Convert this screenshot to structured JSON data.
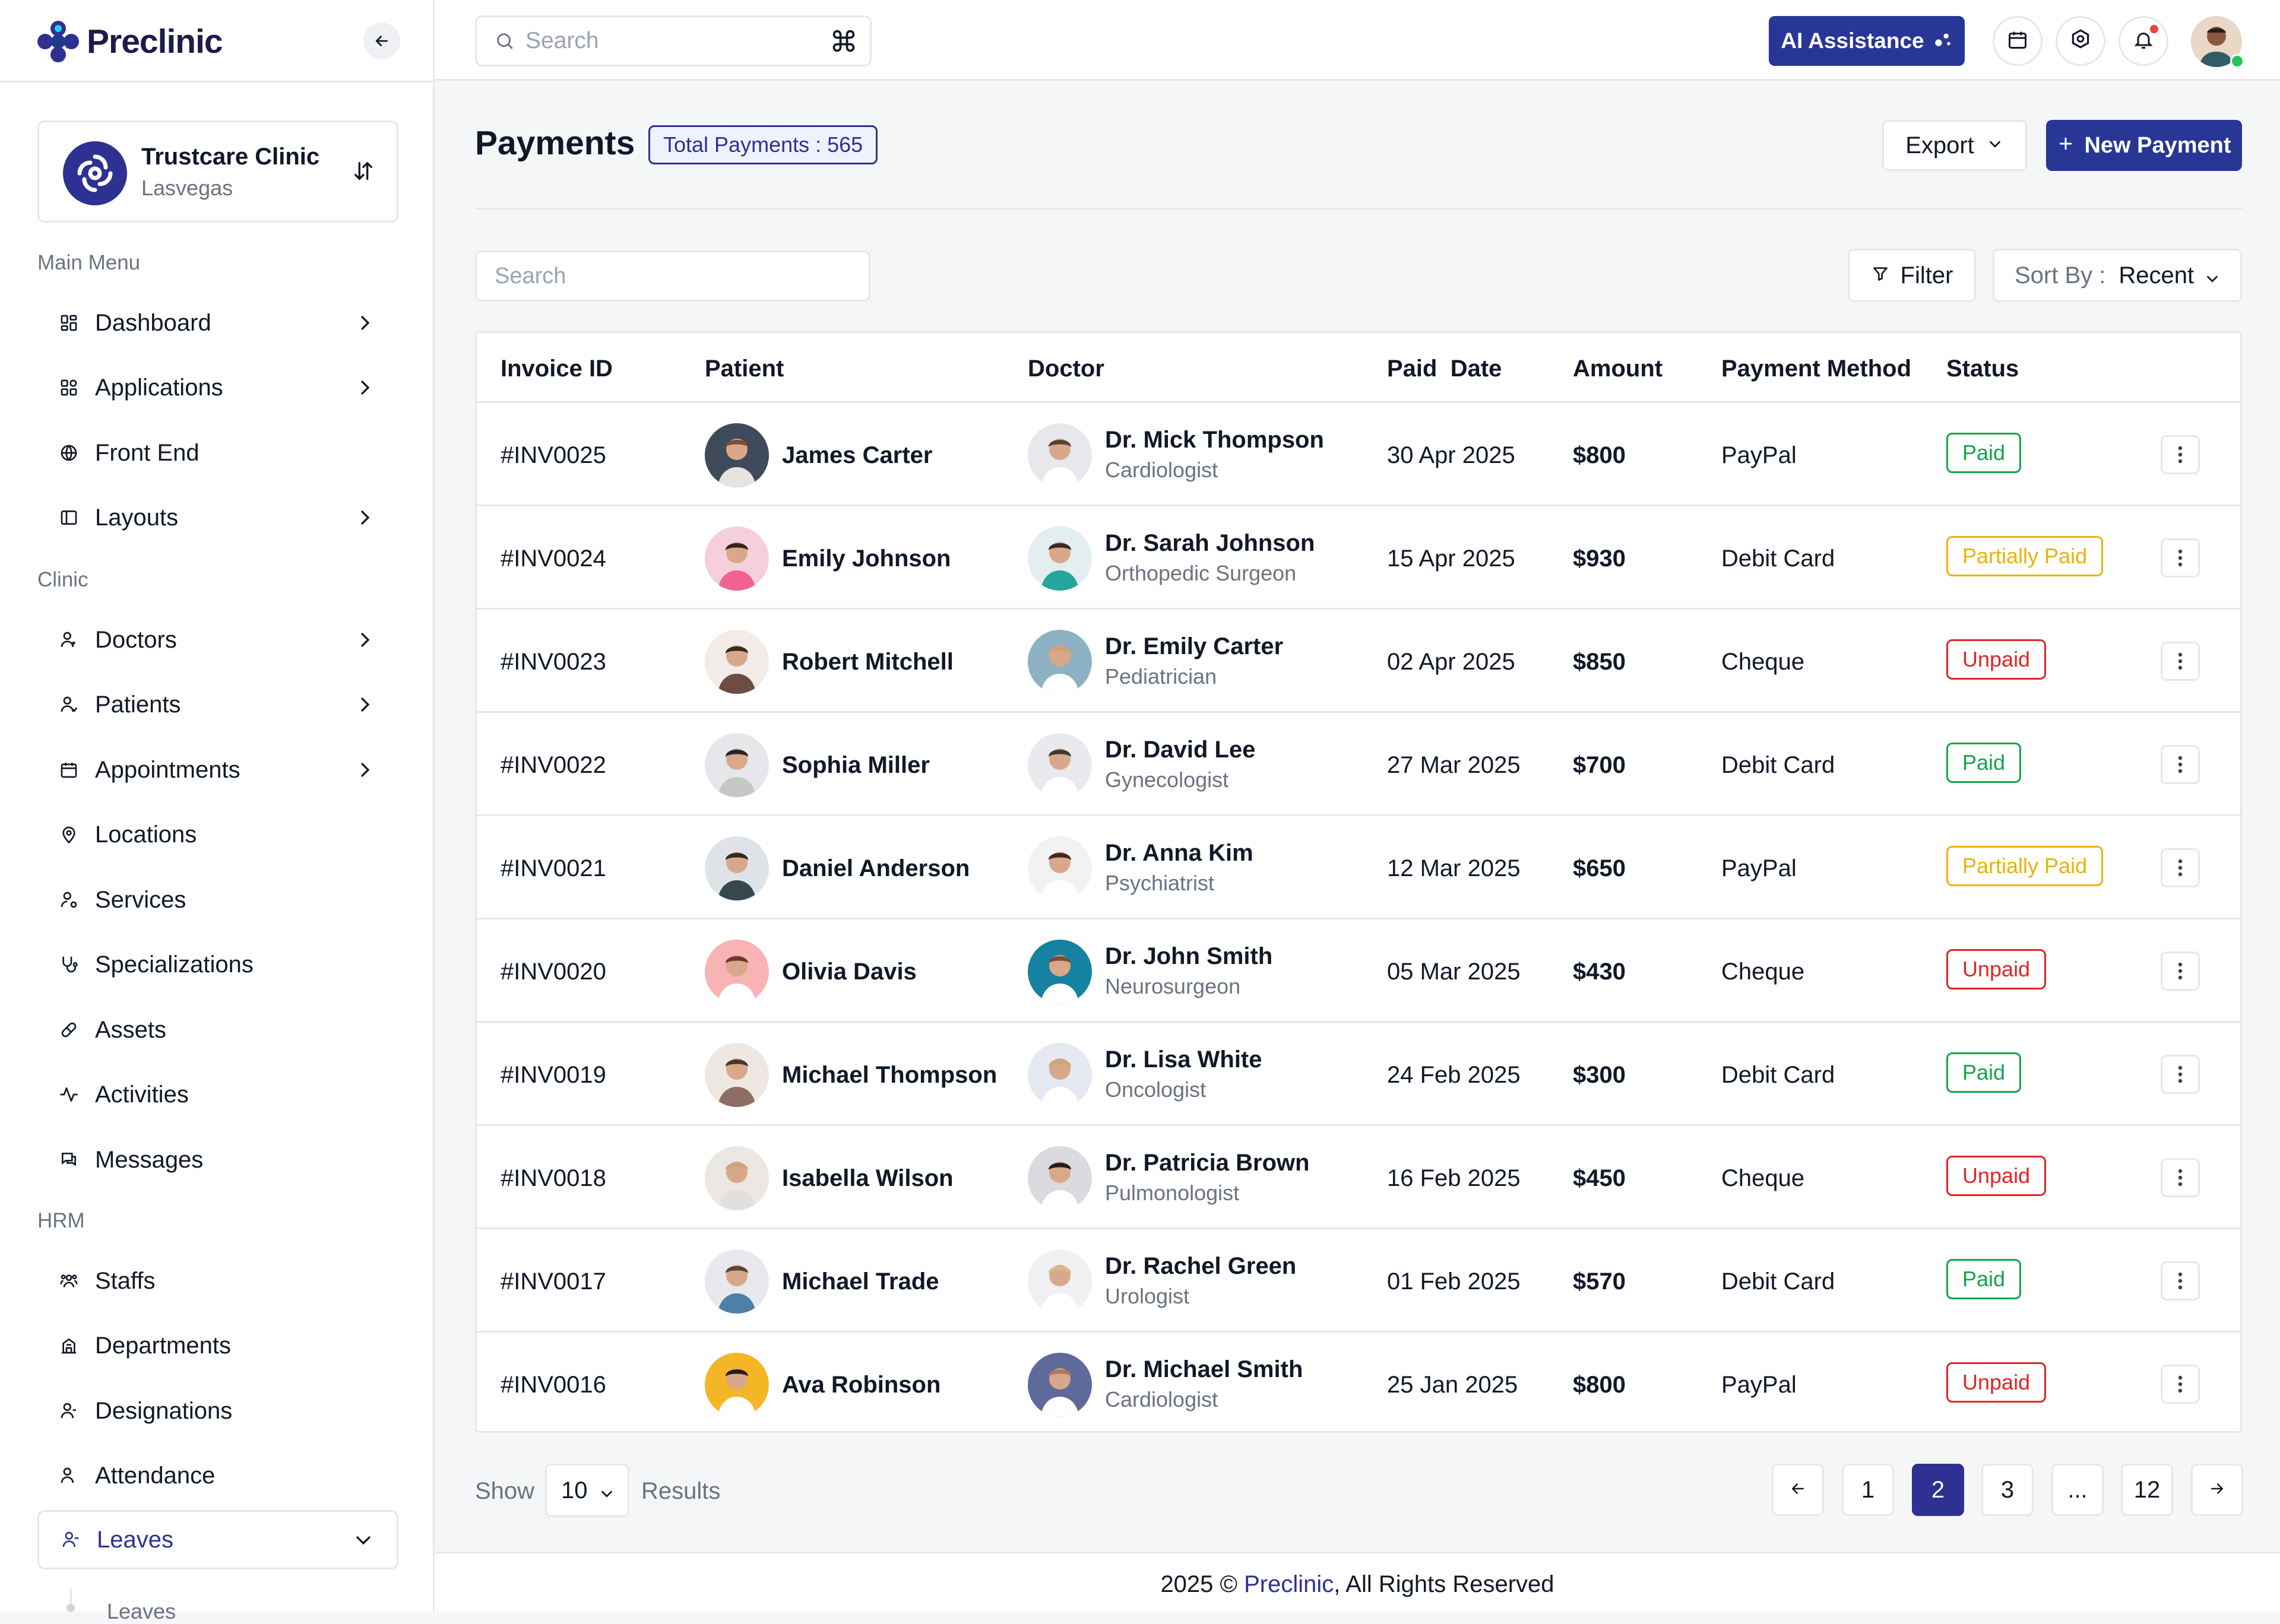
{
  "app": {
    "name": "Preclinic"
  },
  "clinic": {
    "name": "Trustcare Clinic",
    "location": "Lasvegas"
  },
  "sidebar": {
    "sections": [
      {
        "title": "Main Menu"
      },
      {
        "title": "Clinic"
      },
      {
        "title": "HRM"
      }
    ],
    "items": [
      {
        "label": "Dashboard"
      },
      {
        "label": "Applications"
      },
      {
        "label": "Front End"
      },
      {
        "label": "Layouts"
      },
      {
        "label": "Doctors"
      },
      {
        "label": "Patients"
      },
      {
        "label": "Appointments"
      },
      {
        "label": "Locations"
      },
      {
        "label": "Services"
      },
      {
        "label": "Specializations"
      },
      {
        "label": "Assets"
      },
      {
        "label": "Activities"
      },
      {
        "label": "Messages"
      },
      {
        "label": "Staffs"
      },
      {
        "label": "Departments"
      },
      {
        "label": "Designations"
      },
      {
        "label": "Attendance"
      },
      {
        "label": "Leaves"
      }
    ],
    "sub_item_partial": "Leaves"
  },
  "topbar": {
    "search_placeholder": "Search",
    "ai_label": "AI Assistance"
  },
  "page": {
    "title": "Payments",
    "total_badge": "Total Payments : 565",
    "export_label": "Export",
    "new_label": "New Payment",
    "search_placeholder": "Search",
    "filter_label": "Filter",
    "sort_label": "Sort By :",
    "sort_value": "Recent"
  },
  "table": {
    "headers": [
      "Invoice ID",
      "Patient",
      "Doctor",
      "Paid  Date",
      "Amount",
      "Payment Method",
      "Status"
    ],
    "rows": [
      {
        "invoice": "#INV0025",
        "patient": "James Carter",
        "doctor": "Dr. Mick Thompson",
        "specialty": "Cardiologist",
        "date": "30 Apr 2025",
        "amount": "$800",
        "method": "PayPal",
        "status": "Paid"
      },
      {
        "invoice": "#INV0024",
        "patient": "Emily Johnson",
        "doctor": "Dr. Sarah Johnson",
        "specialty": "Orthopedic Surgeon",
        "date": "15 Apr 2025",
        "amount": "$930",
        "method": "Debit Card",
        "status": "Partially Paid"
      },
      {
        "invoice": "#INV0023",
        "patient": "Robert Mitchell",
        "doctor": "Dr. Emily Carter",
        "specialty": "Pediatrician",
        "date": "02 Apr 2025",
        "amount": "$850",
        "method": "Cheque",
        "status": "Unpaid"
      },
      {
        "invoice": "#INV0022",
        "patient": "Sophia Miller",
        "doctor": "Dr. David Lee",
        "specialty": "Gynecologist",
        "date": "27 Mar 2025",
        "amount": "$700",
        "method": "Debit Card",
        "status": "Paid"
      },
      {
        "invoice": "#INV0021",
        "patient": "Daniel Anderson",
        "doctor": "Dr. Anna Kim",
        "specialty": "Psychiatrist",
        "date": "12 Mar 2025",
        "amount": "$650",
        "method": "PayPal",
        "status": "Partially Paid"
      },
      {
        "invoice": "#INV0020",
        "patient": "Olivia Davis",
        "doctor": "Dr. John Smith",
        "specialty": "Neurosurgeon",
        "date": "05 Mar 2025",
        "amount": "$430",
        "method": "Cheque",
        "status": "Unpaid"
      },
      {
        "invoice": "#INV0019",
        "patient": "Michael Thompson",
        "doctor": "Dr. Lisa White",
        "specialty": "Oncologist",
        "date": "24 Feb 2025",
        "amount": "$300",
        "method": "Debit Card",
        "status": "Paid"
      },
      {
        "invoice": "#INV0018",
        "patient": "Isabella Wilson",
        "doctor": "Dr. Patricia Brown",
        "specialty": "Pulmonologist",
        "date": "16 Feb 2025",
        "amount": "$450",
        "method": "Cheque",
        "status": "Unpaid"
      },
      {
        "invoice": "#INV0017",
        "patient": "Michael Trade",
        "doctor": "Dr. Rachel Green",
        "specialty": "Urologist",
        "date": "01 Feb 2025",
        "amount": "$570",
        "method": "Debit Card",
        "status": "Paid"
      },
      {
        "invoice": "#INV0016",
        "patient": "Ava Robinson",
        "doctor": "Dr. Michael Smith",
        "specialty": "Cardiologist",
        "date": "25 Jan 2025",
        "amount": "$800",
        "method": "PayPal",
        "status": "Unpaid"
      }
    ]
  },
  "pagination": {
    "show_label": "Show",
    "show_value": "10",
    "results_label": "Results",
    "pages": [
      "1",
      "2",
      "3",
      "...",
      "12"
    ],
    "current": "2"
  },
  "footer": {
    "prefix": "2025 © ",
    "brand": "Preclinic",
    "suffix": ", All Rights Reserved"
  },
  "colors": {
    "primary": "#2E3192",
    "ai_button": "#283696",
    "paid": "#16A34A",
    "partially_paid": "#EAB308",
    "unpaid": "#DC2626"
  }
}
